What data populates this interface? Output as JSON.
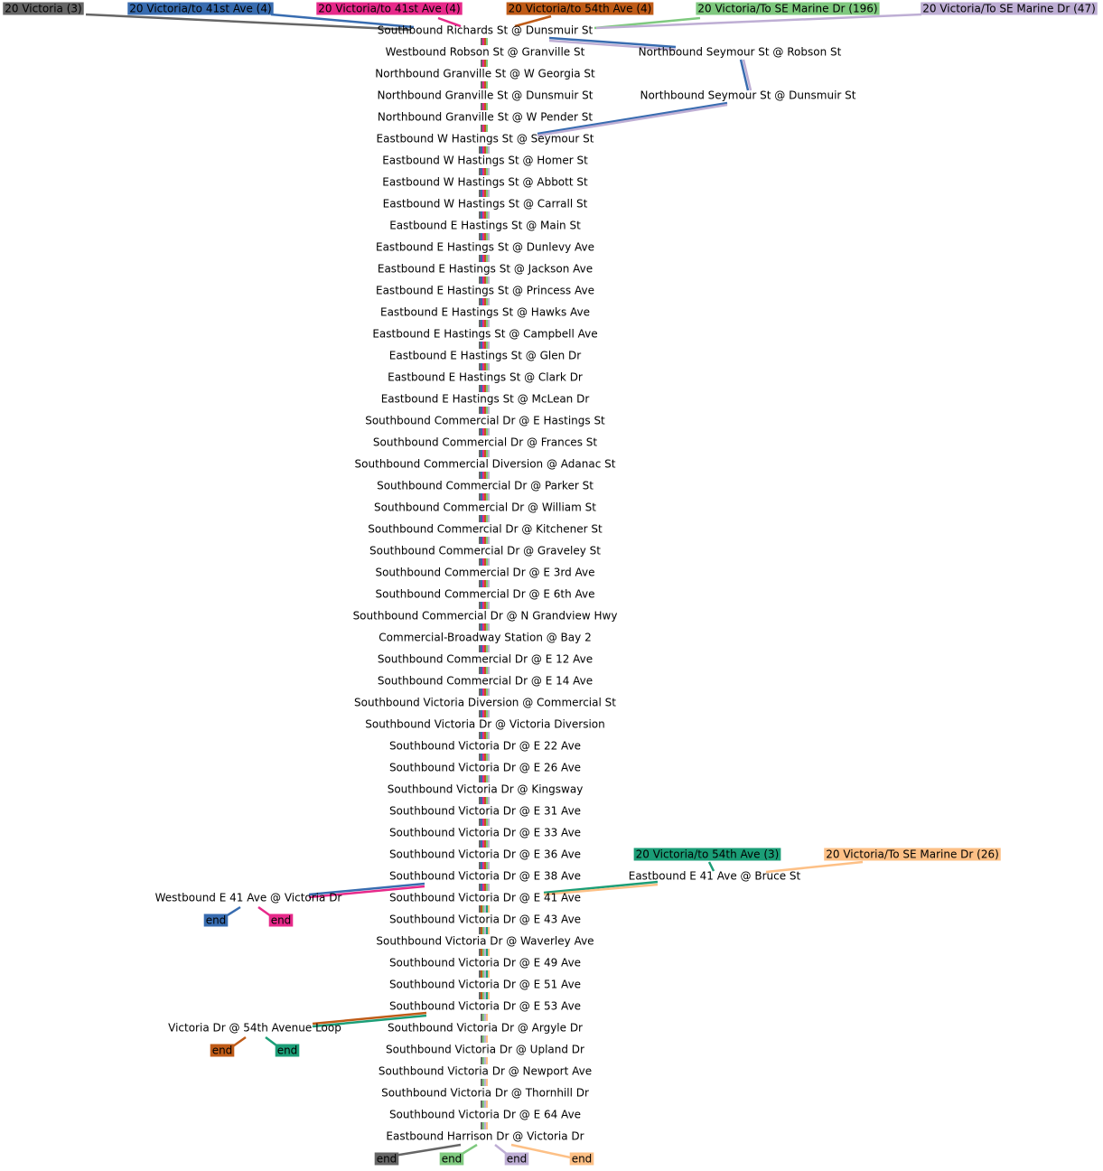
{
  "routes": [
    {
      "label": "20 Victoria (3)",
      "color": "#666666"
    },
    {
      "label": "20 Victoria/to 41st Ave (4)",
      "color": "#386cb0"
    },
    {
      "label": "20 Victoria/to 41st Ave (4)",
      "color": "#e7298a"
    },
    {
      "label": "20 Victoria/to 54th Ave (4)",
      "color": "#bf5b17"
    },
    {
      "label": "20 Victoria/To SE Marine Dr (196)",
      "color": "#7fc97f"
    },
    {
      "label": "20 Victoria/To SE Marine Dr (47)",
      "color": "#beaed4"
    },
    {
      "label": "20 Victoria/to 54th Ave (3)",
      "color": "#1b9e77"
    },
    {
      "label": "20 Victoria/To SE Marine Dr (26)",
      "color": "#fdc086"
    }
  ],
  "stops": [
    "Southbound Richards St @ Dunsmuir St",
    "Westbound Robson St @ Granville St",
    "Northbound Granville St @ W Georgia St",
    "Northbound Granville St @ Dunsmuir St",
    "Northbound Granville St @ W Pender St",
    "Eastbound W Hastings St @ Seymour St",
    "Eastbound W Hastings St @ Homer St",
    "Eastbound W Hastings St @ Abbott St",
    "Eastbound W Hastings St @ Carrall St",
    "Eastbound E Hastings St @ Main St",
    "Eastbound E Hastings St @ Dunlevy Ave",
    "Eastbound E Hastings St @ Jackson Ave",
    "Eastbound E Hastings St @ Princess Ave",
    "Eastbound E Hastings St @ Hawks Ave",
    "Eastbound E Hastings St @ Campbell Ave",
    "Eastbound E Hastings St @ Glen Dr",
    "Eastbound E Hastings St @ Clark Dr",
    "Eastbound E Hastings St @ McLean Dr",
    "Southbound Commercial Dr @ E Hastings St",
    "Southbound Commercial Dr @ Frances St",
    "Southbound Commercial Diversion @ Adanac St",
    "Southbound Commercial Dr @ Parker St",
    "Southbound Commercial Dr @ William St",
    "Southbound Commercial Dr @ Kitchener St",
    "Southbound Commercial Dr @ Graveley St",
    "Southbound Commercial Dr @ E 3rd Ave",
    "Southbound Commercial Dr @ E 6th Ave",
    "Southbound Commercial Dr @ N Grandview Hwy",
    "Commercial-Broadway Station @ Bay 2",
    "Southbound Commercial Dr @ E 12 Ave",
    "Southbound Commercial Dr @ E 14 Ave",
    "Southbound Victoria Diversion @ Commercial St",
    "Southbound Victoria Dr @ Victoria Diversion",
    "Southbound Victoria Dr @ E 22 Ave",
    "Southbound Victoria Dr @ E 26 Ave",
    "Southbound Victoria Dr @ Kingsway",
    "Southbound Victoria Dr @ E 31 Ave",
    "Southbound Victoria Dr @ E 33 Ave",
    "Southbound Victoria Dr @ E 36 Ave",
    "Southbound Victoria Dr @ E 38 Ave",
    "Southbound Victoria Dr @ E 41 Ave",
    "Southbound Victoria Dr @ E 43 Ave",
    "Southbound Victoria Dr @ Waverley Ave",
    "Southbound Victoria Dr @ E 49 Ave",
    "Southbound Victoria Dr @ E 51 Ave",
    "Southbound Victoria Dr @ E 53 Ave",
    "Southbound Victoria Dr @ Argyle Dr",
    "Southbound Victoria Dr @ Upland Dr",
    "Southbound Victoria Dr @ Newport Ave",
    "Southbound Victoria Dr @ Thornhill Dr",
    "Southbound Victoria Dr @ E 64 Ave",
    "Eastbound Harrison Dr @ Victoria Dr"
  ],
  "side_stops": [
    "Northbound Seymour St @ Robson St",
    "Northbound Seymour St @ Dunsmuir St",
    "Westbound E 41 Ave @ Victoria Dr",
    "Eastbound E 41 Ave @ Bruce St",
    "Victoria Dr @ 54th Avenue Loop"
  ],
  "ends": [
    {
      "label": "end",
      "color": "#386cb0"
    },
    {
      "label": "end",
      "color": "#e7298a"
    },
    {
      "label": "end",
      "color": "#bf5b17"
    },
    {
      "label": "end",
      "color": "#1b9e77"
    },
    {
      "label": "end",
      "color": "#666666"
    },
    {
      "label": "end",
      "color": "#7fc97f"
    },
    {
      "label": "end",
      "color": "#beaed4"
    },
    {
      "label": "end",
      "color": "#fdc086"
    }
  ]
}
